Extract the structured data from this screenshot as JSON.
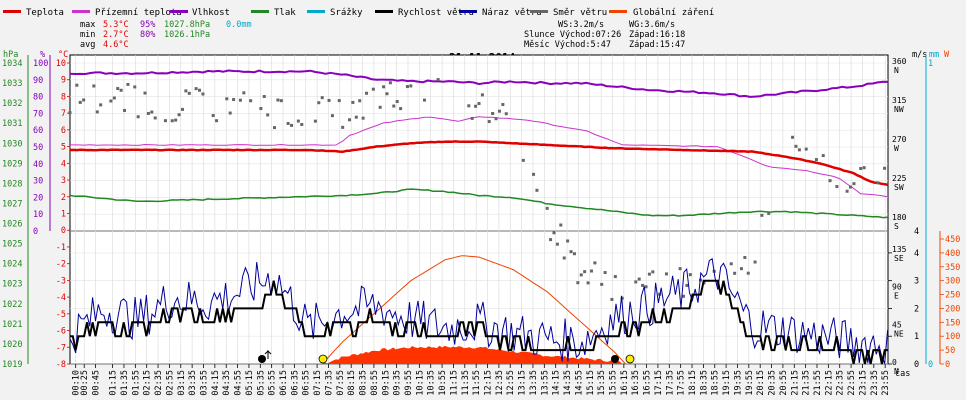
{
  "legend": [
    {
      "label": "Teplota",
      "color": "#e00000"
    },
    {
      "label": "Přízemní teplota",
      "color": "#cc33cc"
    },
    {
      "label": "Vlhkost",
      "color": "#8800bb"
    },
    {
      "label": "Tlak",
      "color": "#228822"
    },
    {
      "label": "Srážky",
      "color": "#00aacc"
    },
    {
      "label": "Rychlost větru",
      "color": "#000000"
    },
    {
      "label": "Náraz větru",
      "color": "#000099"
    },
    {
      "label": "Směr větru",
      "color": "#666666"
    },
    {
      "label": "Globální záření",
      "color": "#ee4400"
    }
  ],
  "stats": {
    "max_label": "max",
    "max_temp": "5.3°C",
    "max_hum": "95%",
    "max_press": "1027.8hPa",
    "max_rain": "0.0mm",
    "min_label": "min",
    "min_temp": "2.7°C",
    "min_hum": "80%",
    "min_press": "1026.1hPa",
    "avg_label": "avg",
    "avg_temp": "4.6°C"
  },
  "wind_info": {
    "ws": "WS:3.2m/s",
    "wg": "WG:3.6m/s"
  },
  "sun_info": {
    "sunrise": "Slunce Východ:07:26",
    "sunset": "Západ:16:18"
  },
  "moon_info": {
    "rise": "Měsíc  Východ:5:47",
    "set": "Západ:15:47"
  },
  "date": "21.11.2014",
  "axes": {
    "hpa_unit": "hPa",
    "pct_unit": "%",
    "c_unit": "°C",
    "ms_unit": "m/s",
    "mm_unit": "mm",
    "w_unit": "W",
    "x_unit": "čas",
    "hpa_ticks": [
      "1034",
      "1033",
      "1032",
      "1031",
      "1030",
      "1029",
      "1028",
      "1027",
      "1026",
      "1025",
      "1024",
      "1023",
      "1022",
      "1021",
      "1020",
      "1019"
    ],
    "pct_ticks": [
      "100",
      "90",
      "80",
      "70",
      "60",
      "50",
      "40",
      "30",
      "20",
      "10",
      "0"
    ],
    "c_ticks": [
      "10",
      "9",
      "8",
      "7",
      "6",
      "5",
      "4",
      "3",
      "2",
      "1",
      "0",
      "-1",
      "-2",
      "-3",
      "-4",
      "-5",
      "-6",
      "-7",
      "-8"
    ],
    "ms_top_ticks": [
      "4"
    ],
    "ms_bot_ticks": [
      "4",
      "3",
      "2",
      "1",
      "0"
    ],
    "mm_ticks": [
      "1",
      "0"
    ],
    "w_ticks": [
      "450",
      "400",
      "350",
      "300",
      "250",
      "200",
      "150",
      "100",
      "50",
      "0"
    ],
    "dir_top": [
      {
        "deg": "360",
        "dir": "N"
      },
      {
        "deg": "315",
        "dir": "NW"
      },
      {
        "deg": "270",
        "dir": "W"
      },
      {
        "deg": "225",
        "dir": "SW"
      },
      {
        "deg": "180",
        "dir": "S"
      }
    ],
    "dir_bot": [
      {
        "deg": "135",
        "dir": "SE"
      },
      {
        "deg": "90",
        "dir": "E"
      },
      {
        "deg": "45",
        "dir": "NE"
      },
      {
        "deg": "0",
        "dir": "N"
      }
    ],
    "time_ticks": [
      "00:10",
      "00:25",
      "00:45",
      "01:15",
      "01:35",
      "01:55",
      "02:15",
      "02:35",
      "02:55",
      "03:15",
      "03:35",
      "03:55",
      "04:15",
      "04:35",
      "04:55",
      "05:15",
      "05:35",
      "05:55",
      "06:15",
      "06:35",
      "06:55",
      "07:15",
      "07:35",
      "07:55",
      "08:15",
      "08:35",
      "08:55",
      "09:15",
      "09:35",
      "09:55",
      "10:15",
      "10:35",
      "10:55",
      "11:15",
      "11:35",
      "11:55",
      "12:15",
      "12:35",
      "12:55",
      "13:15",
      "13:35",
      "13:55",
      "14:15",
      "14:35",
      "14:55",
      "15:15",
      "15:35",
      "15:55",
      "16:15",
      "16:35",
      "16:55",
      "17:15",
      "17:35",
      "17:55",
      "18:15",
      "18:35",
      "18:55",
      "19:15",
      "19:35",
      "19:55",
      "20:15",
      "20:35",
      "20:55",
      "21:15",
      "21:35",
      "21:55",
      "22:15",
      "22:35",
      "22:55",
      "23:15",
      "23:35",
      "23:55"
    ]
  },
  "chart_data": {
    "type": "line",
    "x_range": [
      "00:00",
      "24:00"
    ],
    "series": [
      {
        "name": "Teplota",
        "unit": "°C",
        "points": [
          [
            0,
            4.8
          ],
          [
            7,
            4.8
          ],
          [
            8,
            4.7
          ],
          [
            9,
            5.0
          ],
          [
            10,
            5.2
          ],
          [
            11,
            5.3
          ],
          [
            12,
            5.3
          ],
          [
            13,
            5.2
          ],
          [
            14,
            5.1
          ],
          [
            15,
            5.0
          ],
          [
            16,
            4.9
          ],
          [
            18,
            4.8
          ],
          [
            20,
            4.7
          ],
          [
            21,
            4.4
          ],
          [
            22,
            4.0
          ],
          [
            23,
            3.4
          ],
          [
            23.5,
            2.9
          ],
          [
            24,
            2.7
          ]
        ]
      },
      {
        "name": "Přízemní teplota",
        "unit": "°C",
        "points": [
          [
            0,
            5.1
          ],
          [
            7.9,
            5.1
          ],
          [
            8.1,
            5.6
          ],
          [
            9.2,
            6.4
          ],
          [
            10.5,
            6.8
          ],
          [
            11.4,
            6.5
          ],
          [
            12,
            6.8
          ],
          [
            13.4,
            6.6
          ],
          [
            15.2,
            5.9
          ],
          [
            16.2,
            5.1
          ],
          [
            19,
            5.0
          ],
          [
            19.8,
            4.4
          ],
          [
            20.5,
            3.8
          ],
          [
            21.5,
            3.6
          ],
          [
            22.5,
            3.2
          ],
          [
            23.2,
            2.2
          ],
          [
            24,
            2.0
          ]
        ]
      },
      {
        "name": "Vlhkost",
        "unit": "%",
        "points": [
          [
            0,
            94
          ],
          [
            2,
            94
          ],
          [
            4,
            95
          ],
          [
            7,
            95
          ],
          [
            8,
            93
          ],
          [
            9,
            90
          ],
          [
            10,
            89
          ],
          [
            11,
            89
          ],
          [
            12,
            88
          ],
          [
            13,
            89
          ],
          [
            14,
            88
          ],
          [
            15,
            88
          ],
          [
            16,
            86
          ],
          [
            17,
            84
          ],
          [
            18,
            83
          ],
          [
            19,
            82
          ],
          [
            20,
            80
          ],
          [
            21,
            82
          ],
          [
            22,
            84
          ],
          [
            23,
            86
          ],
          [
            24,
            89
          ]
        ]
      },
      {
        "name": "Tlak",
        "unit": "hPa",
        "points": [
          [
            0,
            1027.4
          ],
          [
            2,
            1027.1
          ],
          [
            4,
            1027.2
          ],
          [
            6,
            1027.3
          ],
          [
            8,
            1027.4
          ],
          [
            9,
            1027.5
          ],
          [
            10,
            1027.7
          ],
          [
            11,
            1027.6
          ],
          [
            12,
            1027.4
          ],
          [
            13,
            1027.3
          ],
          [
            14,
            1027.0
          ],
          [
            15,
            1026.8
          ],
          [
            16,
            1026.6
          ],
          [
            17,
            1026.4
          ],
          [
            18,
            1026.4
          ],
          [
            19,
            1026.5
          ],
          [
            20,
            1026.6
          ],
          [
            21,
            1026.6
          ],
          [
            22,
            1026.5
          ],
          [
            23,
            1026.4
          ],
          [
            24,
            1026.3
          ]
        ]
      },
      {
        "name": "Rychlost větru",
        "unit": "m/s",
        "points": [
          [
            0,
            0.8
          ],
          [
            1,
            1.5
          ],
          [
            2,
            1.2
          ],
          [
            3,
            1.8
          ],
          [
            4,
            1.5
          ],
          [
            5,
            2.0
          ],
          [
            6,
            2.6
          ],
          [
            7,
            0.9
          ],
          [
            8,
            1.4
          ],
          [
            9,
            1.6
          ],
          [
            10,
            1.2
          ],
          [
            11,
            1.0
          ],
          [
            12,
            1.2
          ],
          [
            13,
            0.8
          ],
          [
            14,
            0.6
          ],
          [
            15,
            0.4
          ],
          [
            16,
            1.2
          ],
          [
            17,
            1.6
          ],
          [
            18,
            2.0
          ],
          [
            19,
            3.0
          ],
          [
            20,
            1.0
          ],
          [
            21,
            0.8
          ],
          [
            22,
            0.6
          ],
          [
            23,
            0.4
          ],
          [
            24,
            0.5
          ]
        ]
      },
      {
        "name": "Náraz větru",
        "unit": "m/s",
        "points": [
          [
            0,
            1.0
          ],
          [
            1,
            2.0
          ],
          [
            2,
            1.6
          ],
          [
            3,
            2.4
          ],
          [
            4,
            2.2
          ],
          [
            5,
            2.6
          ],
          [
            6,
            3.2
          ],
          [
            7,
            1.3
          ],
          [
            8,
            1.9
          ],
          [
            9,
            2.1
          ],
          [
            10,
            1.6
          ],
          [
            11,
            1.3
          ],
          [
            12,
            1.5
          ],
          [
            13,
            1.1
          ],
          [
            14,
            0.9
          ],
          [
            15,
            0.8
          ],
          [
            16,
            1.7
          ],
          [
            17,
            2.1
          ],
          [
            18,
            2.6
          ],
          [
            19,
            3.3
          ],
          [
            20,
            1.4
          ],
          [
            21,
            1.2
          ],
          [
            22,
            1.0
          ],
          [
            23,
            0.8
          ],
          [
            24,
            0.7
          ]
        ]
      },
      {
        "name": "Směr větru",
        "unit": "°",
        "points": [
          [
            0,
            320
          ],
          [
            2,
            315
          ],
          [
            4,
            310
          ],
          [
            6,
            305
          ],
          [
            8,
            300
          ],
          [
            9,
            320
          ],
          [
            10,
            330
          ],
          [
            11,
            320
          ],
          [
            12,
            305
          ],
          [
            13,
            300
          ],
          [
            14,
            175
          ],
          [
            15,
            110
          ],
          [
            16,
            95
          ],
          [
            17,
            90
          ],
          [
            18,
            100
          ],
          [
            19,
            115
          ],
          [
            20,
            125
          ],
          [
            21,
            260
          ],
          [
            22,
            240
          ],
          [
            23,
            230
          ],
          [
            24,
            230
          ]
        ]
      },
      {
        "name": "Globální záření",
        "unit": "W",
        "points": [
          [
            7.4,
            0
          ],
          [
            8,
            80
          ],
          [
            9,
            190
          ],
          [
            10,
            300
          ],
          [
            11,
            375
          ],
          [
            11.5,
            390
          ],
          [
            12,
            385
          ],
          [
            13,
            340
          ],
          [
            14,
            260
          ],
          [
            15,
            150
          ],
          [
            16,
            40
          ],
          [
            16.3,
            0
          ]
        ]
      },
      {
        "name": "Globální záření (plocha)",
        "unit": "W",
        "points": [
          [
            7.4,
            0
          ],
          [
            8,
            25
          ],
          [
            9,
            50
          ],
          [
            10,
            60
          ],
          [
            11,
            62
          ],
          [
            12,
            60
          ],
          [
            13,
            45
          ],
          [
            14,
            30
          ],
          [
            15,
            20
          ],
          [
            16,
            10
          ],
          [
            16.3,
            0
          ]
        ]
      }
    ]
  }
}
